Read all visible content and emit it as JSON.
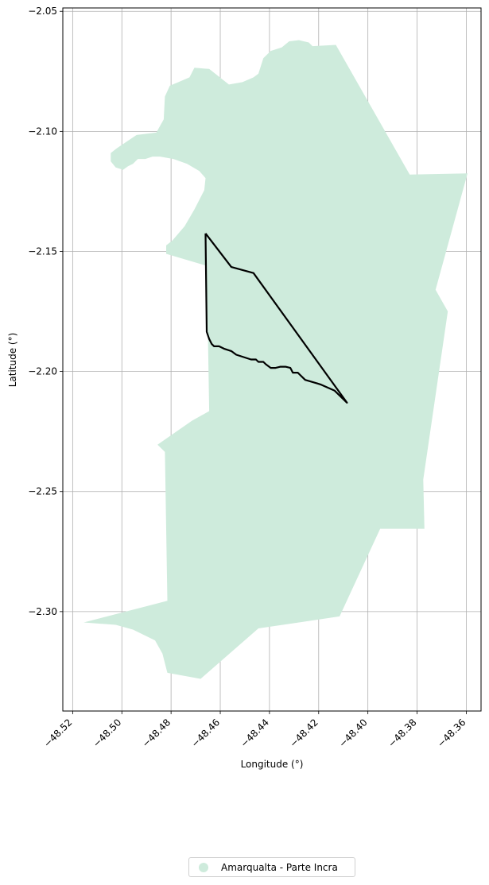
{
  "chart_data": {
    "type": "map",
    "xlabel": "Longitude (°)",
    "ylabel": "Latitude (°)",
    "xlim": [
      -48.524,
      -48.354
    ],
    "ylim": [
      -2.3414,
      -2.0486
    ],
    "grid": true,
    "legend_placement": "bottom-center",
    "x_ticks": [
      {
        "value": -48.52,
        "label": "−48.52"
      },
      {
        "value": -48.5,
        "label": "−48.50"
      },
      {
        "value": -48.48,
        "label": "−48.48"
      },
      {
        "value": -48.46,
        "label": "−48.46"
      },
      {
        "value": -48.44,
        "label": "−48.44"
      },
      {
        "value": -48.42,
        "label": "−48.42"
      },
      {
        "value": -48.4,
        "label": "−48.40"
      },
      {
        "value": -48.38,
        "label": "−48.38"
      },
      {
        "value": -48.36,
        "label": "−48.36"
      }
    ],
    "y_ticks": [
      {
        "value": -2.05,
        "label": "−2.05"
      },
      {
        "value": -2.1,
        "label": "−2.10"
      },
      {
        "value": -2.15,
        "label": "−2.15"
      },
      {
        "value": -2.2,
        "label": "−2.20"
      },
      {
        "value": -2.25,
        "label": "−2.25"
      },
      {
        "value": -2.3,
        "label": "−2.30"
      }
    ],
    "region": {
      "name": "Amarqualta - Parte Incra",
      "color": "#ceebdc",
      "coords": [
        [
          -48.435,
          -2.065
        ],
        [
          -48.432,
          -2.0625
        ],
        [
          -48.428,
          -2.062
        ],
        [
          -48.424,
          -2.063
        ],
        [
          -48.4225,
          -2.0645
        ],
        [
          -48.413,
          -2.064
        ],
        [
          -48.383,
          -2.118
        ],
        [
          -48.3595,
          -2.1175
        ],
        [
          -48.3725,
          -2.166
        ],
        [
          -48.3675,
          -2.175
        ],
        [
          -48.3775,
          -2.245
        ],
        [
          -48.377,
          -2.2655
        ],
        [
          -48.395,
          -2.2655
        ],
        [
          -48.4115,
          -2.302
        ],
        [
          -48.4445,
          -2.307
        ],
        [
          -48.468,
          -2.328
        ],
        [
          -48.4815,
          -2.3255
        ],
        [
          -48.4835,
          -2.3175
        ],
        [
          -48.4865,
          -2.312
        ],
        [
          -48.4955,
          -2.3075
        ],
        [
          -48.5025,
          -2.3055
        ],
        [
          -48.5155,
          -2.3045
        ],
        [
          -48.4815,
          -2.2955
        ],
        [
          -48.4825,
          -2.2335
        ],
        [
          -48.4855,
          -2.2305
        ],
        [
          -48.4715,
          -2.2205
        ],
        [
          -48.4645,
          -2.2165
        ],
        [
          -48.4655,
          -2.156
        ],
        [
          -48.482,
          -2.151
        ],
        [
          -48.482,
          -2.1475
        ],
        [
          -48.4795,
          -2.1455
        ],
        [
          -48.4745,
          -2.1395
        ],
        [
          -48.4705,
          -2.1325
        ],
        [
          -48.4665,
          -2.1245
        ],
        [
          -48.466,
          -2.1195
        ],
        [
          -48.4685,
          -2.1165
        ],
        [
          -48.4735,
          -2.1135
        ],
        [
          -48.479,
          -2.1115
        ],
        [
          -48.4845,
          -2.1105
        ],
        [
          -48.4875,
          -2.1105
        ],
        [
          -48.4905,
          -2.1115
        ],
        [
          -48.4935,
          -2.1115
        ],
        [
          -48.4955,
          -2.1135
        ],
        [
          -48.4975,
          -2.1145
        ],
        [
          -48.4995,
          -2.116
        ],
        [
          -48.5025,
          -2.115
        ],
        [
          -48.5045,
          -2.1125
        ],
        [
          -48.5045,
          -2.109
        ],
        [
          -48.502,
          -2.107
        ],
        [
          -48.494,
          -2.1015
        ],
        [
          -48.486,
          -2.1005
        ],
        [
          -48.483,
          -2.095
        ],
        [
          -48.4825,
          -2.0855
        ],
        [
          -48.4805,
          -2.081
        ],
        [
          -48.477,
          -2.0795
        ],
        [
          -48.4725,
          -2.0775
        ],
        [
          -48.4705,
          -2.0735
        ],
        [
          -48.4645,
          -2.074
        ],
        [
          -48.4565,
          -2.0805
        ],
        [
          -48.451,
          -2.0795
        ],
        [
          -48.4465,
          -2.0775
        ],
        [
          -48.4445,
          -2.076
        ],
        [
          -48.4425,
          -2.0695
        ],
        [
          -48.4395,
          -2.0665
        ]
      ]
    },
    "outline": {
      "color": "#000000",
      "coords": [
        [
          -48.466,
          -2.1425
        ],
        [
          -48.4555,
          -2.1565
        ],
        [
          -48.4465,
          -2.159
        ],
        [
          -48.4085,
          -2.213
        ],
        [
          -48.4135,
          -2.208
        ],
        [
          -48.419,
          -2.2055
        ],
        [
          -48.4205,
          -2.205
        ],
        [
          -48.4255,
          -2.2035
        ],
        [
          -48.4275,
          -2.2015
        ],
        [
          -48.4285,
          -2.2005
        ],
        [
          -48.4305,
          -2.2005
        ],
        [
          -48.4315,
          -2.1985
        ],
        [
          -48.4335,
          -2.198
        ],
        [
          -48.4355,
          -2.198
        ],
        [
          -48.4375,
          -2.1985
        ],
        [
          -48.4395,
          -2.1985
        ],
        [
          -48.4415,
          -2.197
        ],
        [
          -48.4425,
          -2.196
        ],
        [
          -48.4445,
          -2.196
        ],
        [
          -48.4455,
          -2.195
        ],
        [
          -48.4475,
          -2.195
        ],
        [
          -48.4505,
          -2.194
        ],
        [
          -48.4535,
          -2.193
        ],
        [
          -48.4555,
          -2.1915
        ],
        [
          -48.4585,
          -2.1905
        ],
        [
          -48.4605,
          -2.1895
        ],
        [
          -48.4625,
          -2.1895
        ],
        [
          -48.4635,
          -2.1885
        ],
        [
          -48.4645,
          -2.1865
        ],
        [
          -48.4655,
          -2.1835
        ],
        [
          -48.466,
          -2.1425
        ]
      ]
    }
  },
  "legend": {
    "label": "Amarqualta - Parte Incra",
    "color": "#ceebdc"
  }
}
